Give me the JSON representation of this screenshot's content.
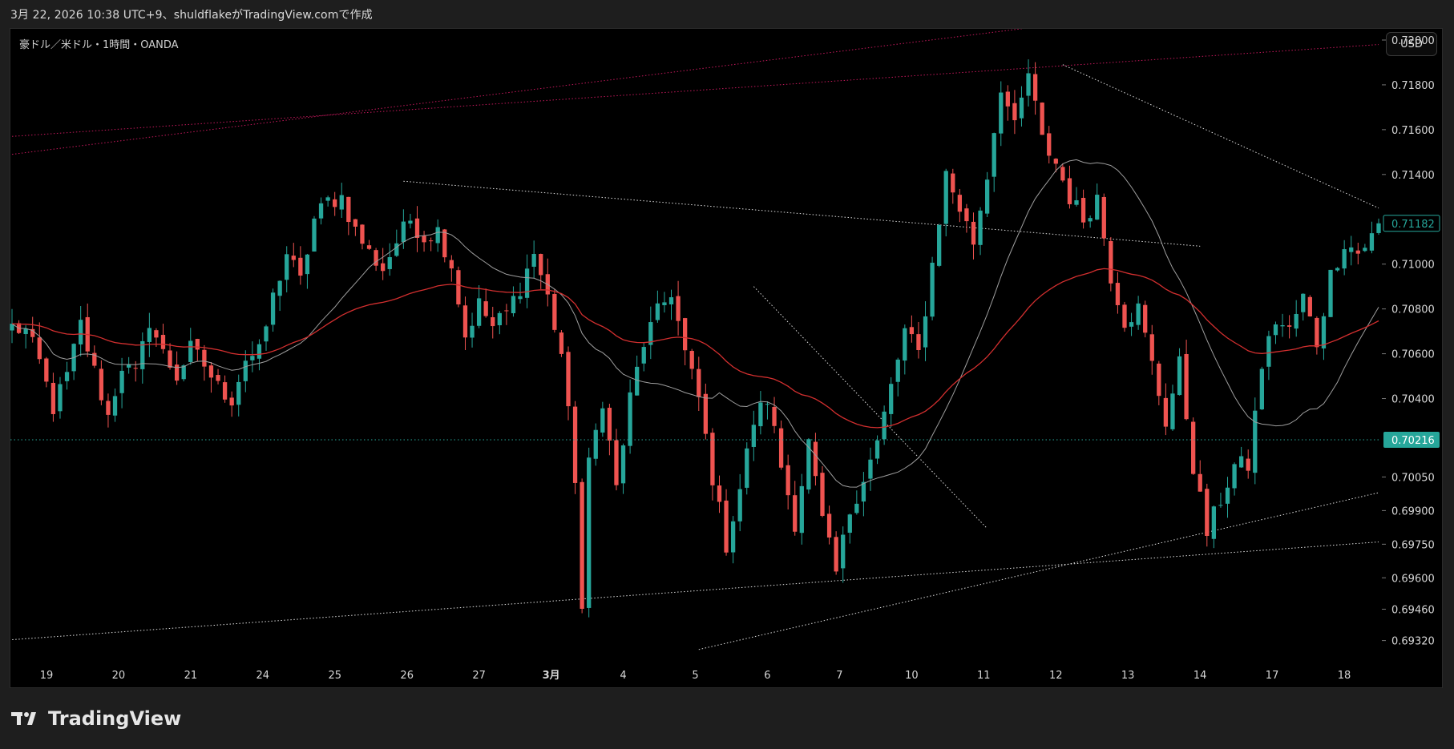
{
  "header": {
    "caption": "3月 22, 2026 10:38 UTC+9、shuldflakeがTradingView.comで作成"
  },
  "chart_header": {
    "symbol": "豪ドル／米ドル・1時間・OANDA",
    "currency": "USD"
  },
  "branding": {
    "logo_text": "TradingView"
  },
  "colors": {
    "background": "#000000",
    "frame": "#1e1e1e",
    "up": "#26a69a",
    "down": "#ef5350",
    "ma_fast": "#9e9e9e",
    "ma_slow": "#d32f2f",
    "line": "#dddddd",
    "pink_line": "#c2185b"
  },
  "chart_data": {
    "type": "candlestick",
    "symbol": "AUDUSD",
    "timeframe": "1h",
    "ylim": [
      0.6924,
      0.7205
    ],
    "y_ticks": [
      "0.72000",
      "0.71800",
      "0.71600",
      "0.71400",
      "0.71000",
      "0.70800",
      "0.70600",
      "0.70400",
      "0.70050",
      "0.69900",
      "0.69750",
      "0.69600",
      "0.69460",
      "0.69320"
    ],
    "x_ticks": [
      "19",
      "20",
      "21",
      "24",
      "25",
      "26",
      "27",
      "3月",
      "4",
      "5",
      "6",
      "7",
      "10",
      "11",
      "12",
      "13",
      "14",
      "17",
      "18"
    ],
    "price_labels": [
      {
        "text": "0.71182",
        "value": 0.71182,
        "color": "#26a69a",
        "style": "outline"
      },
      {
        "text": "0.70216",
        "value": 0.70216,
        "color": "#26a69a",
        "style": "filled"
      }
    ],
    "horizontal_lines": [
      {
        "value": 0.70216,
        "color": "#26a69a",
        "style": "dotted"
      }
    ],
    "anchors": [
      {
        "x": 0,
        "y": 0.7072
      },
      {
        "x": 2,
        "y": 0.707
      },
      {
        "x": 4,
        "y": 0.7056
      },
      {
        "x": 6,
        "y": 0.7036
      },
      {
        "x": 8,
        "y": 0.705
      },
      {
        "x": 10,
        "y": 0.7073
      },
      {
        "x": 12,
        "y": 0.7052
      },
      {
        "x": 14,
        "y": 0.7032
      },
      {
        "x": 16,
        "y": 0.7055
      },
      {
        "x": 18,
        "y": 0.705
      },
      {
        "x": 20,
        "y": 0.7075
      },
      {
        "x": 22,
        "y": 0.706
      },
      {
        "x": 24,
        "y": 0.705
      },
      {
        "x": 26,
        "y": 0.7062
      },
      {
        "x": 28,
        "y": 0.7055
      },
      {
        "x": 30,
        "y": 0.7045
      },
      {
        "x": 32,
        "y": 0.704
      },
      {
        "x": 34,
        "y": 0.7058
      },
      {
        "x": 36,
        "y": 0.706
      },
      {
        "x": 38,
        "y": 0.7085
      },
      {
        "x": 40,
        "y": 0.7105
      },
      {
        "x": 42,
        "y": 0.7092
      },
      {
        "x": 44,
        "y": 0.712
      },
      {
        "x": 46,
        "y": 0.7128
      },
      {
        "x": 48,
        "y": 0.713
      },
      {
        "x": 50,
        "y": 0.7115
      },
      {
        "x": 52,
        "y": 0.7105
      },
      {
        "x": 54,
        "y": 0.7098
      },
      {
        "x": 56,
        "y": 0.711
      },
      {
        "x": 58,
        "y": 0.712
      },
      {
        "x": 60,
        "y": 0.7112
      },
      {
        "x": 62,
        "y": 0.7115
      },
      {
        "x": 64,
        "y": 0.71
      },
      {
        "x": 66,
        "y": 0.7068
      },
      {
        "x": 68,
        "y": 0.7082
      },
      {
        "x": 70,
        "y": 0.7072
      },
      {
        "x": 72,
        "y": 0.7078
      },
      {
        "x": 74,
        "y": 0.709
      },
      {
        "x": 76,
        "y": 0.7105
      },
      {
        "x": 78,
        "y": 0.7085
      },
      {
        "x": 80,
        "y": 0.706
      },
      {
        "x": 82,
        "y": 0.7005
      },
      {
        "x": 83,
        "y": 0.6946
      },
      {
        "x": 84,
        "y": 0.701
      },
      {
        "x": 86,
        "y": 0.704
      },
      {
        "x": 88,
        "y": 0.7
      },
      {
        "x": 90,
        "y": 0.704
      },
      {
        "x": 92,
        "y": 0.7065
      },
      {
        "x": 94,
        "y": 0.7078
      },
      {
        "x": 96,
        "y": 0.7088
      },
      {
        "x": 98,
        "y": 0.706
      },
      {
        "x": 100,
        "y": 0.704
      },
      {
        "x": 102,
        "y": 0.7005
      },
      {
        "x": 104,
        "y": 0.6975
      },
      {
        "x": 106,
        "y": 0.7
      },
      {
        "x": 108,
        "y": 0.703
      },
      {
        "x": 110,
        "y": 0.704
      },
      {
        "x": 112,
        "y": 0.701
      },
      {
        "x": 114,
        "y": 0.6985
      },
      {
        "x": 116,
        "y": 0.702
      },
      {
        "x": 118,
        "y": 0.6985
      },
      {
        "x": 120,
        "y": 0.6962
      },
      {
        "x": 122,
        "y": 0.699
      },
      {
        "x": 124,
        "y": 0.7005
      },
      {
        "x": 126,
        "y": 0.702
      },
      {
        "x": 128,
        "y": 0.7045
      },
      {
        "x": 130,
        "y": 0.707
      },
      {
        "x": 132,
        "y": 0.706
      },
      {
        "x": 134,
        "y": 0.71
      },
      {
        "x": 136,
        "y": 0.714
      },
      {
        "x": 138,
        "y": 0.7125
      },
      {
        "x": 140,
        "y": 0.711
      },
      {
        "x": 142,
        "y": 0.714
      },
      {
        "x": 144,
        "y": 0.718
      },
      {
        "x": 146,
        "y": 0.716
      },
      {
        "x": 148,
        "y": 0.7185
      },
      {
        "x": 150,
        "y": 0.7155
      },
      {
        "x": 152,
        "y": 0.7145
      },
      {
        "x": 154,
        "y": 0.713
      },
      {
        "x": 156,
        "y": 0.712
      },
      {
        "x": 158,
        "y": 0.713
      },
      {
        "x": 160,
        "y": 0.7095
      },
      {
        "x": 162,
        "y": 0.7075
      },
      {
        "x": 164,
        "y": 0.708
      },
      {
        "x": 166,
        "y": 0.7055
      },
      {
        "x": 168,
        "y": 0.703
      },
      {
        "x": 170,
        "y": 0.7055
      },
      {
        "x": 172,
        "y": 0.701
      },
      {
        "x": 174,
        "y": 0.698
      },
      {
        "x": 176,
        "y": 0.6995
      },
      {
        "x": 178,
        "y": 0.701
      },
      {
        "x": 180,
        "y": 0.701
      },
      {
        "x": 182,
        "y": 0.7055
      },
      {
        "x": 184,
        "y": 0.7075
      },
      {
        "x": 186,
        "y": 0.707
      },
      {
        "x": 188,
        "y": 0.7085
      },
      {
        "x": 190,
        "y": 0.7065
      },
      {
        "x": 192,
        "y": 0.7095
      },
      {
        "x": 194,
        "y": 0.711
      },
      {
        "x": 196,
        "y": 0.7105
      },
      {
        "x": 198,
        "y": 0.7112
      },
      {
        "x": 199,
        "y": 0.71182
      }
    ],
    "total_bars": 200,
    "moving_averages": [
      {
        "period": 20,
        "color": "#9e9e9e"
      },
      {
        "period": 200,
        "color": "#d32f2f",
        "note": "slow"
      }
    ],
    "trendlines": [
      {
        "from": [
          -20,
          0.6928
        ],
        "to": [
          199,
          0.6976
        ],
        "color": "#dddddd",
        "style": "dotted"
      },
      {
        "from": [
          100,
          0.6928
        ],
        "to": [
          199,
          0.6998
        ],
        "color": "#dddddd",
        "style": "dotted"
      },
      {
        "from": [
          57,
          0.7137
        ],
        "to": [
          173,
          0.7108
        ],
        "color": "#dddddd",
        "style": "dotted"
      },
      {
        "from": [
          108,
          0.709
        ],
        "to": [
          142,
          0.6982
        ],
        "color": "#dddddd",
        "style": "dotted"
      },
      {
        "from": [
          153,
          0.7189
        ],
        "to": [
          199,
          0.7125
        ],
        "color": "#dddddd",
        "style": "dotted"
      },
      {
        "from": [
          0,
          0.7157
        ],
        "to": [
          199,
          0.7198
        ],
        "color": "#c2185b",
        "style": "dotted"
      },
      {
        "from": [
          0,
          0.7149
        ],
        "to": [
          160,
          0.721
        ],
        "color": "#c2185b",
        "style": "dotted"
      }
    ]
  }
}
